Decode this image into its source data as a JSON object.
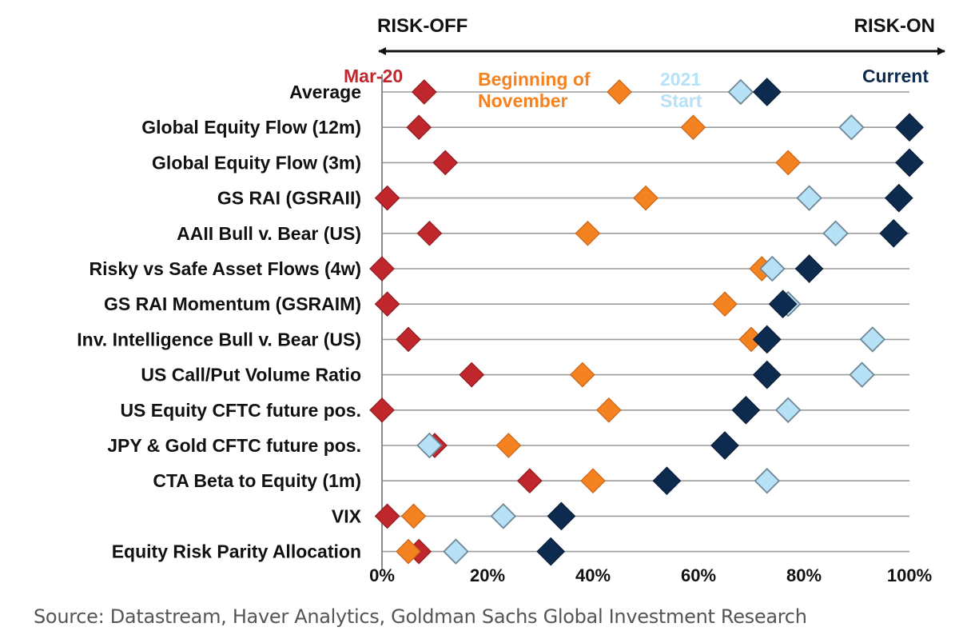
{
  "chart_data": {
    "type": "scatter",
    "x_axis": {
      "min": 0,
      "max": 100,
      "unit": "%",
      "ticks": [
        "0%",
        "20%",
        "40%",
        "60%",
        "80%",
        "100%"
      ],
      "left_label": "RISK-OFF",
      "right_label": "RISK-ON"
    },
    "grid": true,
    "legend_placement": "top-inline",
    "categories": [
      "Average",
      "Global Equity Flow (12m)",
      "Global Equity Flow (3m)",
      "GS RAI (GSRAII)",
      "AAII Bull v. Bear (US)",
      "Risky vs Safe Asset Flows (4w)",
      "GS RAI Momentum (GSRAIM)",
      "Inv. Intelligence Bull v. Bear (US)",
      "US Call/Put Volume Ratio",
      "US Equity CFTC future pos.",
      "JPY & Gold CFTC future pos.",
      "CTA Beta to Equity (1m)",
      "VIX",
      "Equity Risk Parity Allocation"
    ],
    "series": [
      {
        "name": "Mar-20",
        "color": "#c0272d",
        "values": [
          8,
          7,
          12,
          1,
          9,
          0,
          1,
          5,
          17,
          0,
          10,
          28,
          1,
          7
        ]
      },
      {
        "name": "Beginning of November",
        "name_lines": [
          "Beginning of",
          "November"
        ],
        "color": "#f58220",
        "values": [
          45,
          59,
          77,
          50,
          39,
          72,
          65,
          70,
          38,
          43,
          24,
          40,
          6,
          5
        ]
      },
      {
        "name": "2021 Start",
        "name_lines": [
          "2021",
          "Start"
        ],
        "color": "#b7e1f7",
        "values": [
          68,
          89,
          100,
          81,
          86,
          74,
          77,
          93,
          91,
          77,
          9,
          73,
          23,
          14
        ]
      },
      {
        "name": "Current",
        "color": "#0d2a4f",
        "values": [
          73,
          100,
          100,
          98,
          97,
          81,
          76,
          73,
          73,
          69,
          65,
          54,
          34,
          32
        ]
      }
    ]
  },
  "source": "Source: Datastream, Haver Analytics, Goldman Sachs Global Investment Research"
}
